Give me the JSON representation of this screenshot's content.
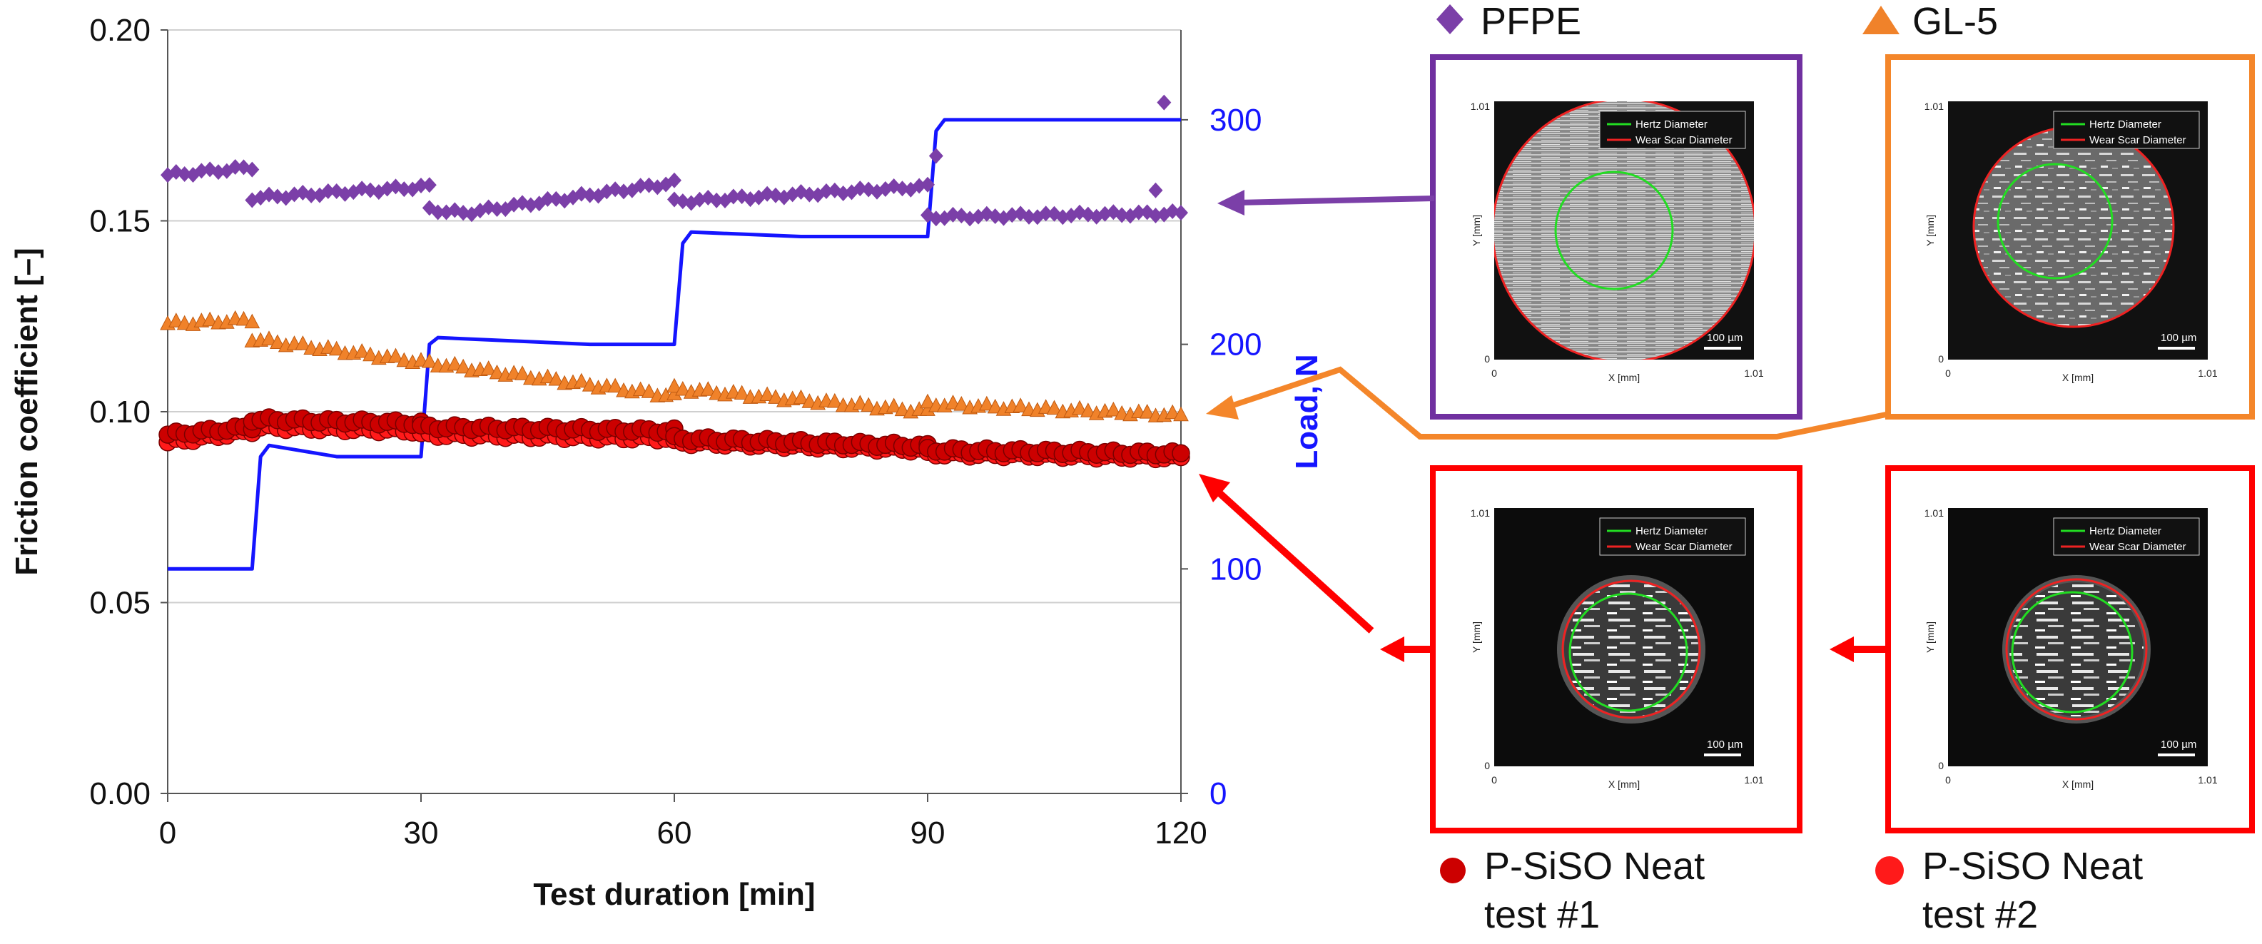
{
  "chart_data": {
    "type": "scatter",
    "x_axis": {
      "label": "Test duration [min]",
      "range": [
        0,
        120
      ],
      "ticks": [
        0,
        30,
        60,
        90,
        120
      ]
    },
    "y_axis_left": {
      "label": "Friction coefficient [–]",
      "range": [
        0,
        0.2
      ],
      "ticks": [
        "0.00",
        "0.05",
        "0.10",
        "0.15",
        "0.20"
      ]
    },
    "y_axis_right": {
      "label": "Load, N",
      "range": [
        0,
        340
      ],
      "ticks": [
        "0",
        "100",
        "200",
        "300"
      ],
      "color": "#1515ff"
    },
    "grid": "horizontal",
    "series": [
      {
        "name": "PFPE",
        "marker": "diamond",
        "color": "#7b3fa8",
        "segments": [
          [
            0,
            10,
            0.162,
            0.164
          ],
          [
            10,
            31,
            0.156,
            0.159
          ],
          [
            31,
            35,
            0.153,
            0.152
          ],
          [
            35,
            60,
            0.152,
            0.16
          ],
          [
            60,
            90,
            0.155,
            0.159
          ],
          [
            90,
            120,
            0.151,
            0.152
          ]
        ],
        "outliers": [
          [
            91,
            0.167
          ],
          [
            117,
            0.158
          ],
          [
            118,
            0.181
          ]
        ]
      },
      {
        "name": "GL-5",
        "marker": "triangle",
        "color": "#f0822a",
        "segments": [
          [
            0,
            10,
            0.123,
            0.124
          ],
          [
            10,
            60,
            0.119,
            0.104
          ],
          [
            60,
            90,
            0.106,
            0.1
          ],
          [
            90,
            120,
            0.102,
            0.099
          ]
        ]
      },
      {
        "name": "P-SiSO Neat test #1",
        "marker": "circle",
        "color": "#cc0000",
        "segments": [
          [
            0,
            10,
            0.094,
            0.096
          ],
          [
            10,
            30,
            0.098,
            0.097
          ],
          [
            30,
            60,
            0.096,
            0.095
          ],
          [
            60,
            90,
            0.093,
            0.091
          ],
          [
            90,
            120,
            0.09,
            0.089
          ]
        ]
      },
      {
        "name": "P-SiSO Neat test #2",
        "marker": "circle",
        "color": "#ff1a1a",
        "segments": [
          [
            0,
            10,
            0.092,
            0.095
          ],
          [
            10,
            30,
            0.096,
            0.095
          ],
          [
            30,
            60,
            0.094,
            0.093
          ],
          [
            60,
            90,
            0.092,
            0.09
          ],
          [
            90,
            120,
            0.089,
            0.088
          ]
        ]
      },
      {
        "name": "Load",
        "axis": "right",
        "type": "line",
        "color": "#1515ff",
        "points": [
          [
            0,
            100
          ],
          [
            10,
            100
          ],
          [
            11,
            150
          ],
          [
            12,
            155
          ],
          [
            20,
            150
          ],
          [
            30,
            150
          ],
          [
            31,
            200
          ],
          [
            32,
            203
          ],
          [
            50,
            200
          ],
          [
            60,
            200
          ],
          [
            61,
            245
          ],
          [
            62,
            250
          ],
          [
            75,
            248
          ],
          [
            90,
            248
          ],
          [
            91,
            295
          ],
          [
            92,
            300
          ],
          [
            120,
            300
          ]
        ]
      }
    ]
  },
  "legend": {
    "pfpe": "PFPE",
    "gl5": "GL-5",
    "psiso1_line1": "P-SiSO Neat",
    "psiso1_line2": "test #1",
    "psiso2_line1": "P-SiSO Neat",
    "psiso2_line2": "test #2"
  },
  "micrographs": {
    "legend_hertz": "Hertz Diameter",
    "legend_wear": "Wear Scar Diameter",
    "scale_bar": "100 µm",
    "x_label": "X [mm]",
    "y_label": "Y [mm]",
    "tick_zero": "0",
    "tick_max": "1.01",
    "colors": {
      "hertz": "#22dd22",
      "wear": "#ee2222"
    },
    "panels": [
      {
        "id": "pfpe",
        "frame_color": "#7030a0"
      },
      {
        "id": "gl5",
        "frame_color": "#f4862a"
      },
      {
        "id": "psiso1",
        "frame_color": "#ff0000"
      },
      {
        "id": "psiso2",
        "frame_color": "#ff0000"
      }
    ]
  }
}
